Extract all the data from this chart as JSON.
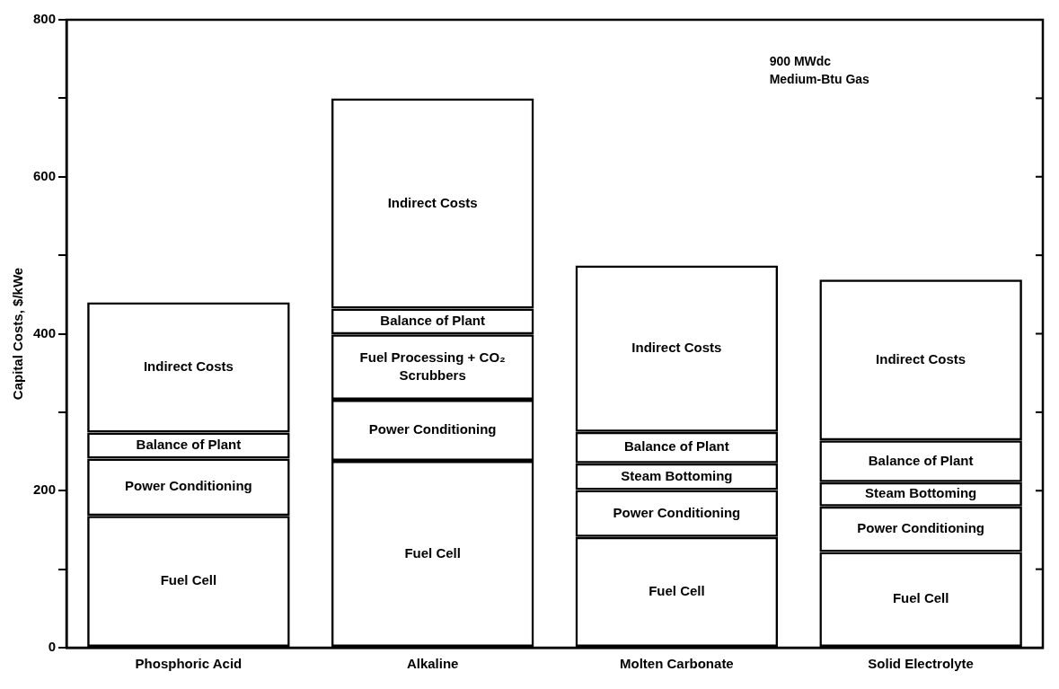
{
  "chart_data": {
    "type": "bar",
    "stacked": true,
    "ylabel": "Capital Costs, $/kWe",
    "categories": [
      "Phosphoric Acid",
      "Alkaline",
      "Molten Carbonate",
      "Solid Electrolyte"
    ],
    "series": [
      {
        "name": "Fuel Cell",
        "color": "#000000",
        "values": [
          168,
          238,
          141,
          122
        ]
      },
      {
        "name": "Power Conditioning",
        "color": "#000000",
        "values": [
          73,
          78,
          60,
          58
        ]
      },
      {
        "name": "Steam Bottoming",
        "color": "#000000",
        "values": [
          null,
          null,
          34,
          31
        ]
      },
      {
        "name": "Fuel Processing + CO₂ Scrubbers",
        "color": "#000000",
        "values": [
          null,
          83,
          null,
          null
        ]
      },
      {
        "name": "Balance of Plant",
        "color": "#000000",
        "values": [
          33,
          33,
          40,
          53
        ]
      },
      {
        "name": "Indirect Costs",
        "color": "#000000",
        "values": [
          166,
          268,
          212,
          205
        ]
      }
    ],
    "ylim": [
      0,
      800
    ],
    "yticks": [
      0,
      {
        "value": 100,
        "label": null
      },
      200,
      {
        "value": 300,
        "label": null
      },
      400,
      {
        "value": 500,
        "label": null
      },
      600,
      {
        "value": 700,
        "label": null
      },
      800
    ],
    "annotations": [
      "900 MWdc",
      "Medium-Btu Gas"
    ],
    "grid": false,
    "legend": false
  }
}
